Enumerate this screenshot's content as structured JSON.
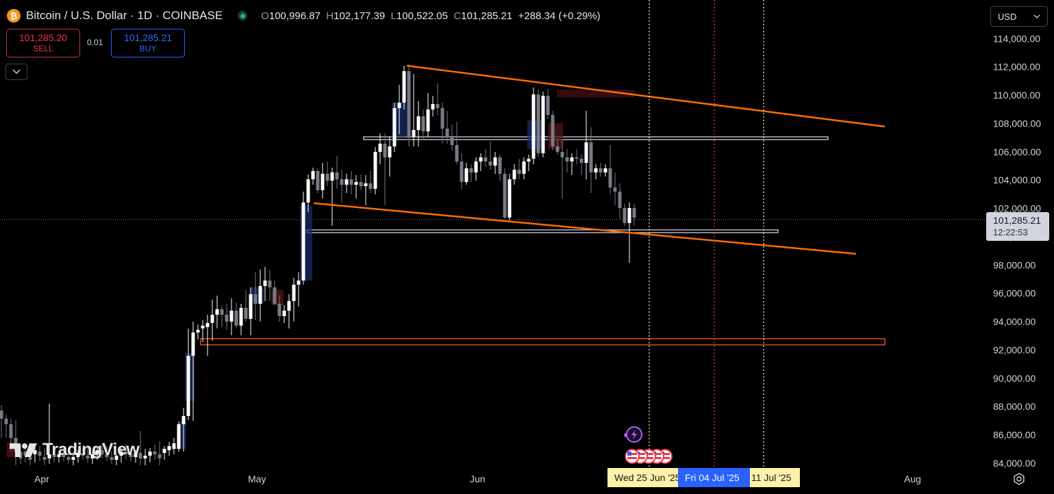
{
  "header": {
    "symbol_icon": "bitcoin-icon",
    "title": "Bitcoin / U.S. Dollar · 1D · COINBASE",
    "ohlc": {
      "o_label": "O",
      "o": "100,996.87",
      "h_label": "H",
      "h": "102,177.39",
      "l_label": "L",
      "l": "100,522.05",
      "c_label": "C",
      "c": "101,285.21",
      "change": "+288.34 (+0.29%)"
    }
  },
  "trade": {
    "sell_price": "101,285.20",
    "sell_label": "SELL",
    "spread": "0.01",
    "buy_price": "101,285.21",
    "buy_label": "BUY"
  },
  "currency": "USD",
  "last_price": {
    "value": "101,285.21",
    "countdown": "12:22:53"
  },
  "brand": "TradingView",
  "date_markers": [
    "Wed 25 Jun '25",
    "Fri 04 Jul '25",
    "11 Jul '25"
  ],
  "chart_data": {
    "type": "candlestick",
    "y_axis": {
      "ticks": [
        84000,
        86000,
        88000,
        90000,
        92000,
        94000,
        96000,
        98000,
        100000,
        102000,
        104000,
        106000,
        108000,
        110000,
        112000,
        114000
      ],
      "tick_labels": [
        "84,000.00",
        "86,000.00",
        "88,000.00",
        "90,000.00",
        "92,000.00",
        "94,000.00",
        "96,000.00",
        "98,000.00",
        "100,000.00",
        "102,000.00",
        "104,000.00",
        "106,000.00",
        "108,000.00",
        "110,000.00",
        "112,000.00",
        "114,000.00"
      ]
    },
    "x_axis": {
      "labels": [
        "Apr",
        "May",
        "Jun",
        "Aug"
      ]
    },
    "colors": {
      "up": "#ffffff",
      "down": "#787b86",
      "trendline": "#ff6d00",
      "zone_white": "#d1d4dc",
      "zone_orange": "#ff5722",
      "marker_yellow": "#fff1a8",
      "marker_red": "#f23645"
    }
  }
}
